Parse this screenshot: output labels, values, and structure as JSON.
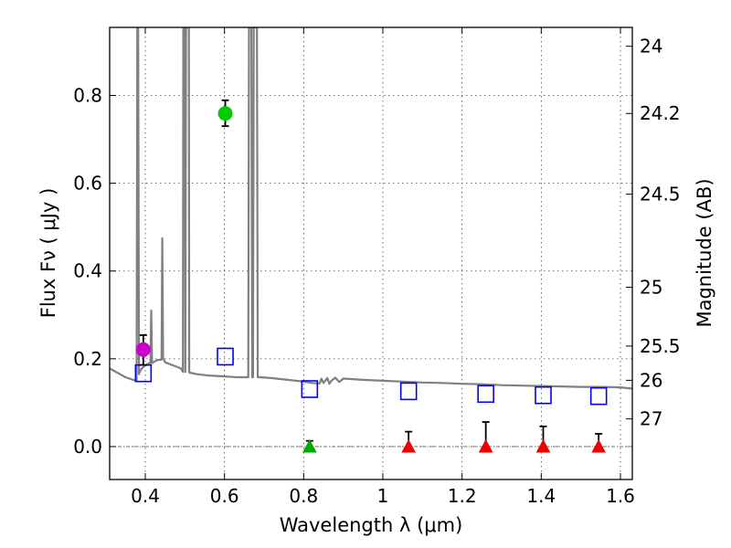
{
  "chart_data": {
    "type": "scatter",
    "xlabel": "Wavelength  λ (μm)",
    "ylabel": "Flux  Fν  ( μJy )",
    "ylabel_right": "Magnitude (AB)",
    "xlim": [
      0.31,
      1.63
    ],
    "ylim": [
      -0.075,
      0.955
    ],
    "grid": true,
    "x_ticks": [
      0.4,
      0.6,
      0.8,
      1.0,
      1.2,
      1.4,
      1.6
    ],
    "x_tick_labels": [
      "0.4",
      "0.6",
      "0.8",
      "1",
      "1.2",
      "1.4",
      "1.6"
    ],
    "y_ticks": [
      0.0,
      0.2,
      0.4,
      0.6,
      0.8
    ],
    "y_tick_labels": [
      "0.0",
      "0.2",
      "0.4",
      "0.6",
      "0.8"
    ],
    "right_axis_ticks": [
      {
        "label": "24",
        "flux": 0.912
      },
      {
        "label": "24.2",
        "flux": 0.759
      },
      {
        "label": "24.5",
        "flux": 0.575
      },
      {
        "label": "25",
        "flux": 0.363
      },
      {
        "label": "25.5",
        "flux": 0.229
      },
      {
        "label": "26",
        "flux": 0.151
      },
      {
        "label": "27",
        "flux": 0.063
      }
    ],
    "series": [
      {
        "name": "SED model",
        "kind": "line",
        "color": "#808080",
        "x": [
          0.31,
          0.33,
          0.35,
          0.37,
          0.378,
          0.38,
          0.382,
          0.384,
          0.386,
          0.39,
          0.4,
          0.41,
          0.413,
          0.415,
          0.417,
          0.42,
          0.43,
          0.44,
          0.441,
          0.443,
          0.445,
          0.447,
          0.45,
          0.47,
          0.49,
          0.495,
          0.496,
          0.497,
          0.499,
          0.5,
          0.501,
          0.503,
          0.504,
          0.506,
          0.508,
          0.51,
          0.511,
          0.512,
          0.515,
          0.53,
          0.56,
          0.6,
          0.63,
          0.65,
          0.66,
          0.662,
          0.664,
          0.666,
          0.668,
          0.67,
          0.672,
          0.674,
          0.676,
          0.678,
          0.68,
          0.682,
          0.684,
          0.686,
          0.688,
          0.69,
          0.72,
          0.76,
          0.8,
          0.82,
          0.84,
          0.845,
          0.85,
          0.86,
          0.865,
          0.87,
          0.88,
          0.89,
          0.9,
          0.95,
          1.0,
          1.05,
          1.1,
          1.15,
          1.2,
          1.25,
          1.3,
          1.35,
          1.4,
          1.45,
          1.5,
          1.55,
          1.6,
          1.63
        ],
        "y": [
          0.178,
          0.168,
          0.158,
          0.152,
          0.15,
          0.955,
          0.955,
          0.165,
          0.17,
          0.177,
          0.185,
          0.19,
          0.19,
          0.31,
          0.19,
          0.192,
          0.197,
          0.198,
          0.198,
          0.475,
          0.2,
          0.198,
          0.192,
          0.185,
          0.178,
          0.17,
          0.955,
          0.955,
          0.955,
          0.955,
          0.17,
          0.955,
          0.955,
          0.955,
          0.955,
          0.955,
          0.17,
          0.168,
          0.168,
          0.165,
          0.162,
          0.16,
          0.158,
          0.158,
          0.158,
          0.955,
          0.955,
          0.955,
          0.955,
          0.158,
          0.158,
          0.955,
          0.955,
          0.955,
          0.955,
          0.955,
          0.158,
          0.158,
          0.158,
          0.158,
          0.156,
          0.152,
          0.148,
          0.145,
          0.144,
          0.155,
          0.145,
          0.156,
          0.143,
          0.15,
          0.157,
          0.147,
          0.155,
          0.152,
          0.15,
          0.148,
          0.146,
          0.145,
          0.143,
          0.142,
          0.14,
          0.139,
          0.138,
          0.137,
          0.136,
          0.136,
          0.135,
          0.132
        ]
      },
      {
        "name": "Model bandpass fluxes",
        "kind": "open-square",
        "color": "#0000ff",
        "x": [
          0.395,
          0.602,
          0.815,
          1.065,
          1.26,
          1.405,
          1.545
        ],
        "y": [
          0.167,
          0.205,
          0.131,
          0.126,
          0.12,
          0.117,
          0.115
        ]
      },
      {
        "name": "Magenta detection",
        "kind": "filled-circle",
        "color": "#cc00cc",
        "x": [
          0.395
        ],
        "y": [
          0.221
        ],
        "err_low": [
          0.186
        ],
        "err_high": [
          0.254
        ]
      },
      {
        "name": "Green detection",
        "kind": "filled-circle",
        "color": "#00cc00",
        "x": [
          0.602
        ],
        "y": [
          0.759
        ],
        "err_low": [
          0.73
        ],
        "err_high": [
          0.789
        ]
      },
      {
        "name": "Green upper limit",
        "kind": "triangle",
        "color": "#00aa00",
        "x": [
          0.815
        ],
        "y": [
          0.0
        ],
        "err_high": [
          0.013
        ]
      },
      {
        "name": "Red upper limits",
        "kind": "triangle",
        "color": "#ee0000",
        "x": [
          1.065,
          1.26,
          1.405,
          1.545
        ],
        "y": [
          0.0,
          0.0,
          0.0,
          0.0
        ],
        "err_high": [
          0.034,
          0.056,
          0.046,
          0.029
        ]
      }
    ]
  }
}
